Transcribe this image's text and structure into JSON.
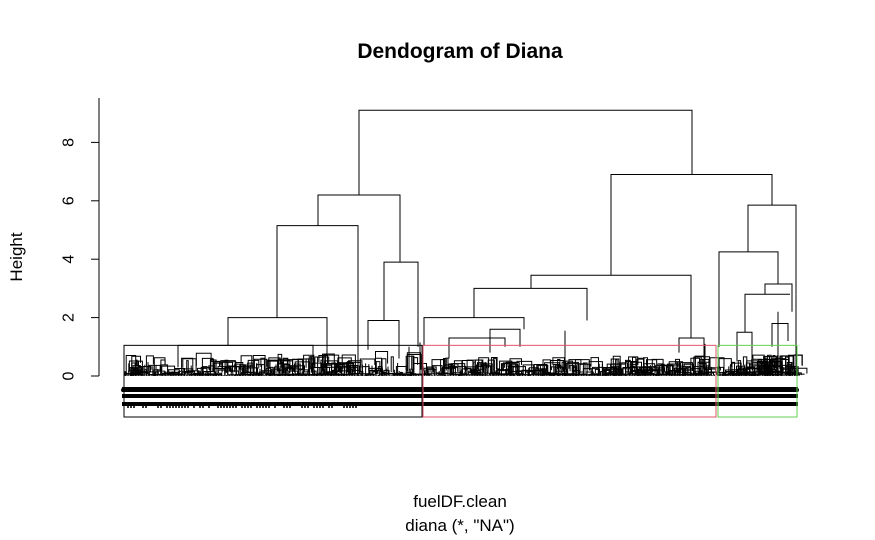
{
  "chart_data": {
    "type": "dendrogram",
    "title": "Dendogram of Diana",
    "ylabel": "Height",
    "xlabel": "fuelDF.clean",
    "sub": "diana (*, \"NA\")",
    "ylim": [
      0,
      9.1
    ],
    "yticks": [
      0,
      2,
      4,
      6,
      8
    ],
    "main_merges": [
      {
        "height": 9.1
      },
      {
        "height": 6.9
      },
      {
        "height": 6.2
      },
      {
        "height": 5.85
      },
      {
        "height": 5.15
      },
      {
        "height": 4.25
      },
      {
        "height": 3.9
      },
      {
        "height": 3.45
      },
      {
        "height": 3.15
      },
      {
        "height": 3.0
      },
      {
        "height": 2.8
      },
      {
        "height": 2.0
      },
      {
        "height": 2.0
      },
      {
        "height": 1.9
      },
      {
        "height": 1.05
      }
    ],
    "cluster_boxes": [
      {
        "cluster": 1,
        "color": "#000000",
        "cut_height": 1.05
      },
      {
        "cluster": 2,
        "color": "#DF536B",
        "cut_height": 1.05
      },
      {
        "cluster": 3,
        "color": "#61D04F",
        "cut_height": 1.05
      }
    ]
  }
}
